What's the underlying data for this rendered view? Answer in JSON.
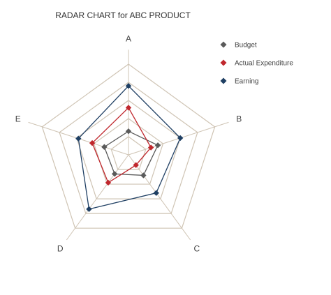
{
  "chart_data": {
    "type": "radar",
    "title": "RADAR CHART for ABC PRODUCT",
    "axes": [
      "A",
      "B",
      "C",
      "D",
      "E"
    ],
    "range": [
      0,
      5
    ],
    "grid_levels": 5,
    "grid": true,
    "legend_position": "top-right",
    "series": [
      {
        "name": "Budget",
        "values": [
          1.3,
          1.7,
          1.4,
          1.3,
          1.4
        ],
        "color": "#5a5a5a"
      },
      {
        "name": "Actual Expenditure",
        "values": [
          2.6,
          1.3,
          0.7,
          1.9,
          2.1
        ],
        "color": "#c0272d"
      },
      {
        "name": "Earning",
        "values": [
          3.8,
          3.0,
          2.6,
          3.7,
          2.9
        ],
        "color": "#1f3f63"
      }
    ]
  },
  "colors": {
    "grid": "#cfc4b4",
    "axis": "#cfc4b4"
  }
}
